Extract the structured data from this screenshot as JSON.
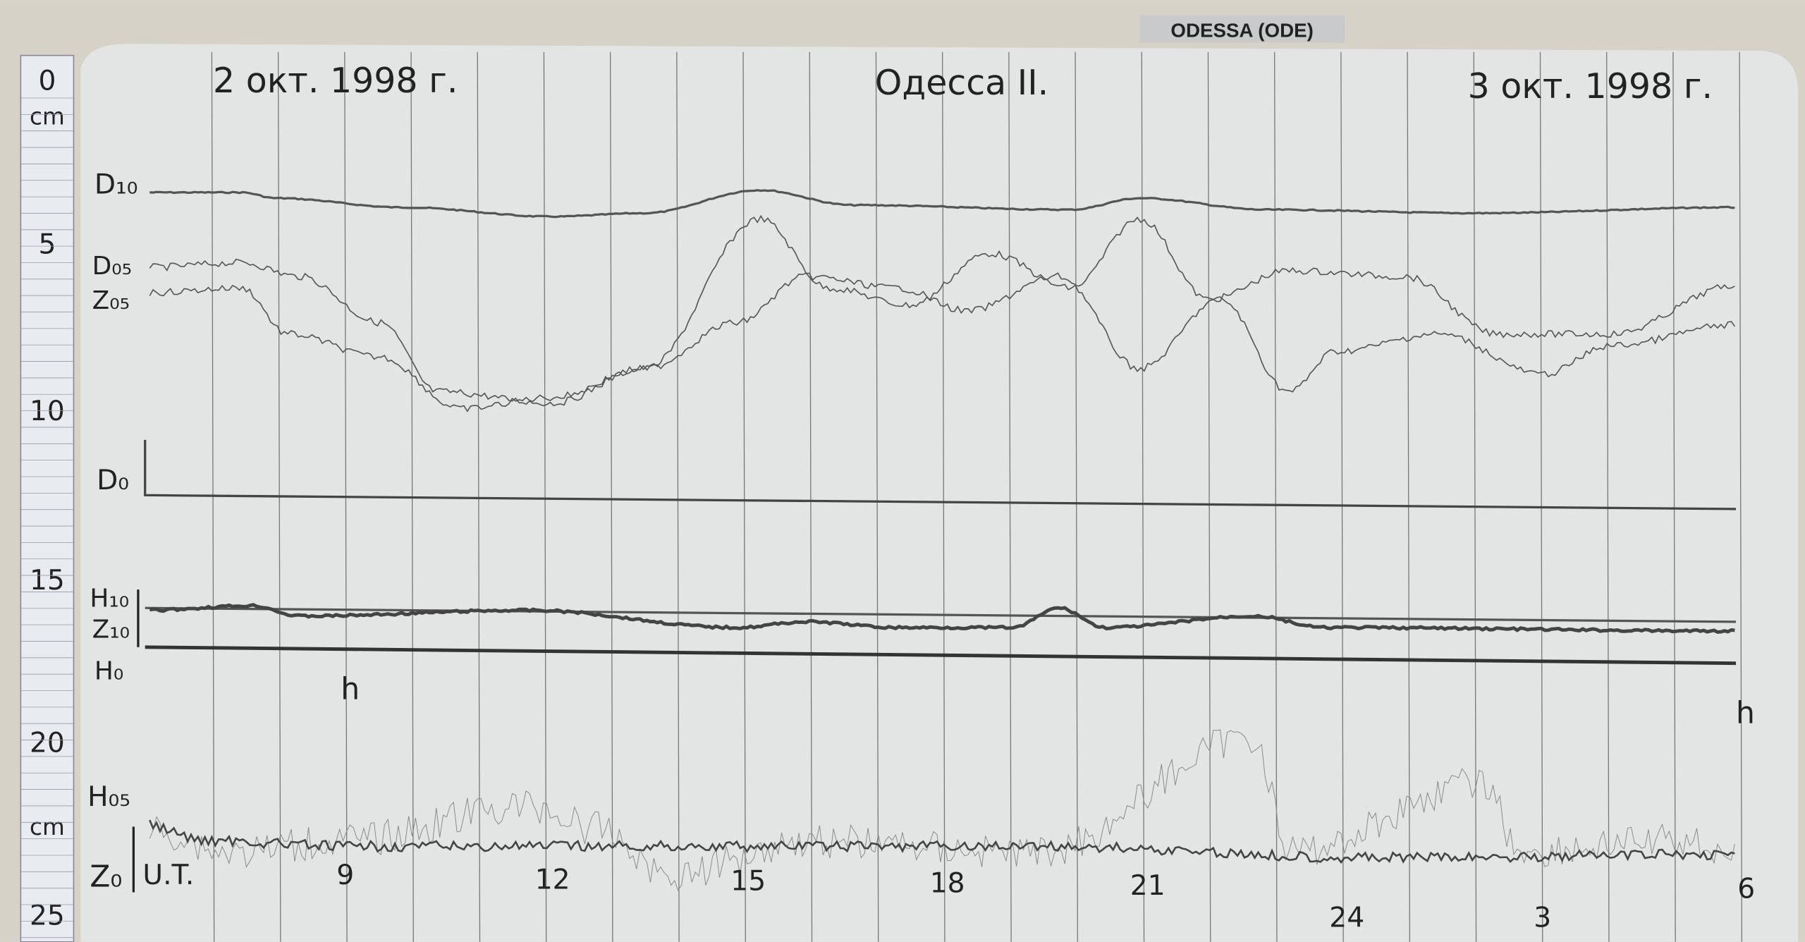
{
  "sign": "ODESSA (ODE)",
  "header": {
    "date_left": "2 окт. 1998 г.",
    "station": "Одесса II.",
    "date_right": "3 окт. 1998 г."
  },
  "ruler": {
    "labels": [
      "0",
      "cm",
      "5",
      "10",
      "15",
      "20",
      "cm",
      "25"
    ]
  },
  "trace_labels": {
    "D10": "D₁₀",
    "D05": "D₀₅",
    "Z05": "Z₀₅",
    "D0": "D₀",
    "H10": "H₁₀",
    "Z10": "Z₁₀",
    "H0": "H₀",
    "H05": "H₀₅",
    "Z0": "Z₀"
  },
  "time_axis": {
    "ut": "U.T.",
    "hours": [
      "9",
      "12",
      "15",
      "18",
      "21",
      "24",
      "3",
      "6"
    ],
    "unit_left": "h",
    "unit_right": "h"
  },
  "colors": {
    "paper": "#e4e6e6",
    "ink": "#3a3a3e",
    "ruler": "#e8ecf0"
  }
}
